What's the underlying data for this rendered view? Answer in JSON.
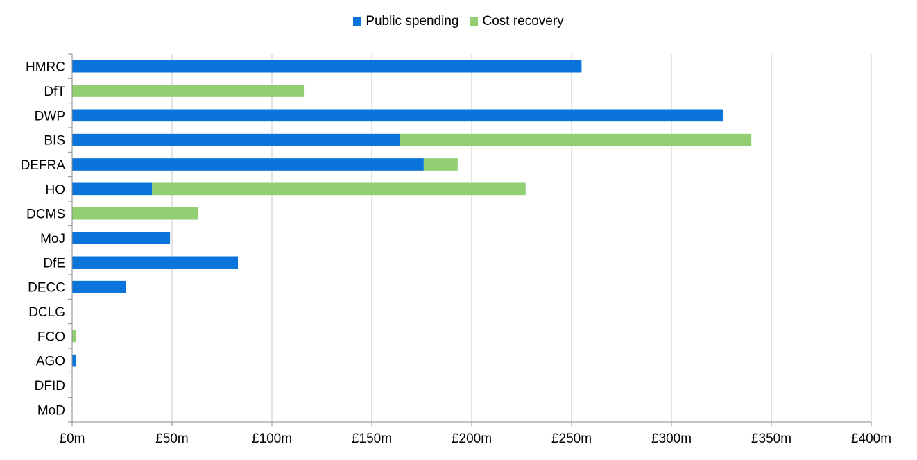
{
  "chart_data": {
    "type": "bar",
    "orientation": "horizontal",
    "stacked": true,
    "categories": [
      "HMRC",
      "DfT",
      "DWP",
      "BIS",
      "DEFRA",
      "HO",
      "DCMS",
      "MoJ",
      "DfE",
      "DECC",
      "DCLG",
      "FCO",
      "AGO",
      "DFID",
      "MoD"
    ],
    "series": [
      {
        "name": "Public spending",
        "color": "#0a74da",
        "values": [
          255,
          0,
          326,
          164,
          176,
          40,
          0,
          49,
          83,
          27,
          0,
          0,
          2,
          0,
          0
        ]
      },
      {
        "name": "Cost recovery",
        "color": "#92cf72",
        "values": [
          0,
          116,
          0,
          176,
          17,
          187,
          63,
          0,
          0,
          0,
          0,
          2,
          0,
          0,
          0
        ]
      }
    ],
    "xlim": [
      0,
      400
    ],
    "x_ticks": [
      "£0m",
      "£50m",
      "£100m",
      "£150m",
      "£200m",
      "£250m",
      "£300m",
      "£350m",
      "£400m"
    ],
    "grid": true,
    "legend_position": "top-center"
  }
}
